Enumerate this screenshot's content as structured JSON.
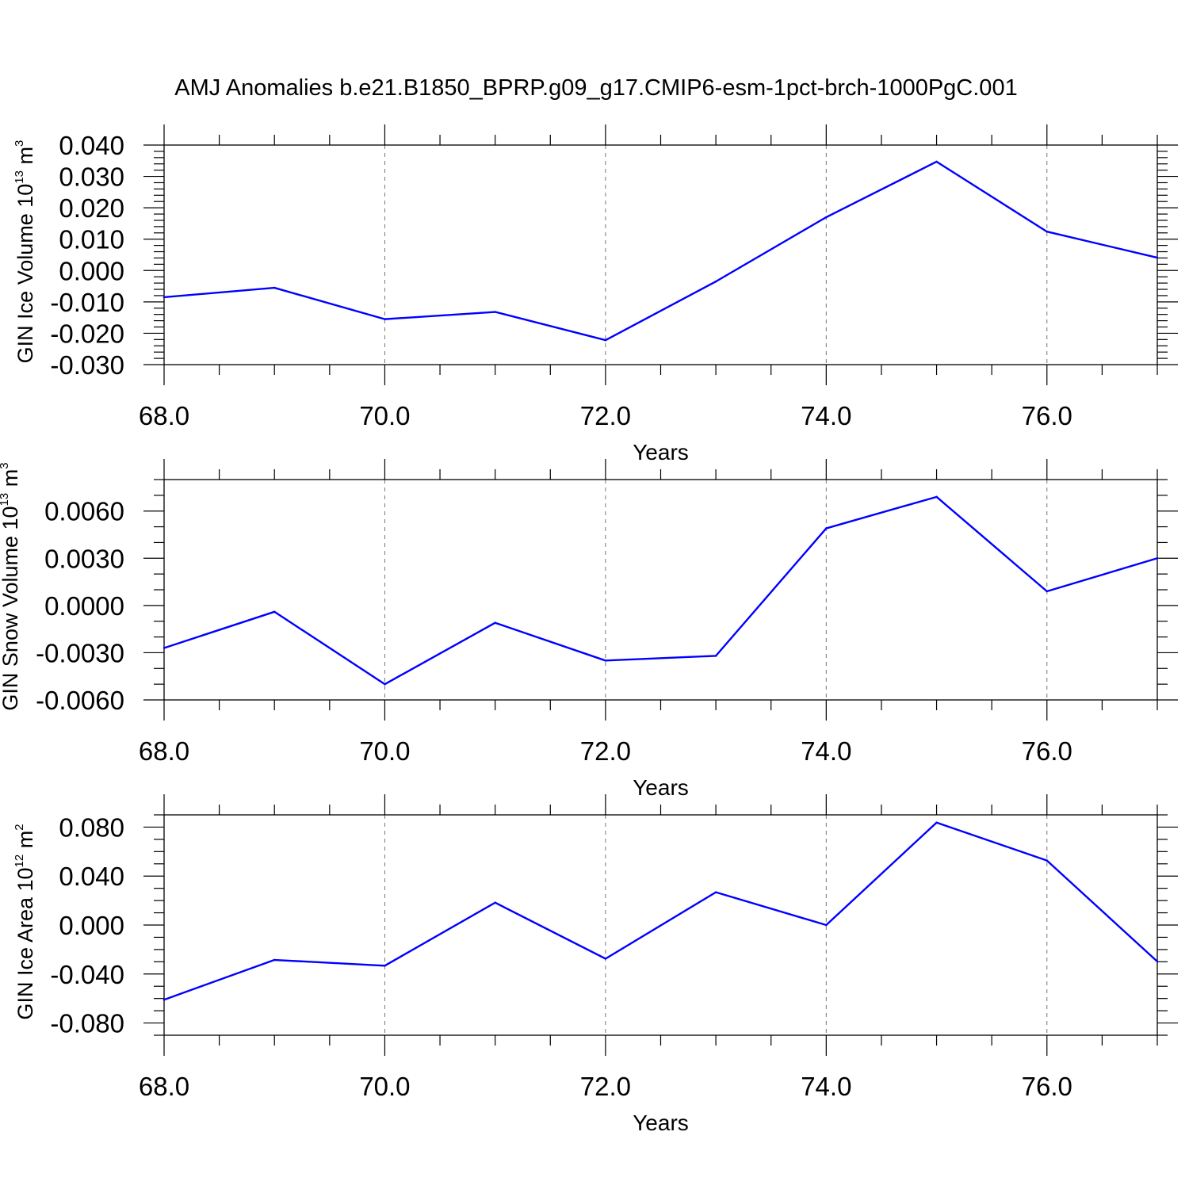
{
  "colors": {
    "series": "#0000ff",
    "axis": "#000000",
    "grid": "#777777"
  },
  "chart_data": [
    {
      "type": "line",
      "title": "AMJ Anomalies b.e21.B1850_BPRP.g09_g17.CMIP6-esm-1pct-brch-1000PgC.001",
      "xlabel": "Years",
      "ylabel_main": "GIN Ice Volume 10",
      "ylabel_exp": "13",
      "ylabel_unit": " m",
      "ylabel_unit_exp": "3",
      "x": [
        68,
        69,
        70,
        71,
        72,
        73,
        74,
        75,
        76,
        77
      ],
      "values": [
        -0.0085,
        -0.0055,
        -0.0155,
        -0.0132,
        -0.0222,
        -0.0035,
        0.017,
        0.0347,
        0.0124,
        0.0041
      ],
      "xlim": [
        68,
        77
      ],
      "ylim": [
        -0.03,
        0.04
      ],
      "xticks": [
        68,
        70,
        72,
        74,
        76
      ],
      "xtick_labels": [
        "68.0",
        "70.0",
        "72.0",
        "74.0",
        "76.0"
      ],
      "yticks": [
        -0.03,
        -0.02,
        -0.01,
        0.0,
        0.01,
        0.02,
        0.03,
        0.04
      ],
      "ytick_labels": [
        "-0.030",
        "-0.020",
        "-0.010",
        "0.000",
        "0.010",
        "0.020",
        "0.030",
        "0.040"
      ],
      "y_minor_step": 0.002,
      "grid": "vertical dashed at major x ticks"
    },
    {
      "type": "line",
      "xlabel": "Years",
      "ylabel_main": "GIN Snow Volume 10",
      "ylabel_exp": "13",
      "ylabel_unit": " m",
      "ylabel_unit_exp": "3",
      "x": [
        68,
        69,
        70,
        71,
        72,
        73,
        74,
        75,
        76,
        77
      ],
      "values": [
        -0.0027,
        -0.0004,
        -0.005,
        -0.0011,
        -0.0035,
        -0.0032,
        0.0049,
        0.0069,
        0.0009,
        0.003
      ],
      "xlim": [
        68,
        77
      ],
      "ylim": [
        -0.006,
        0.008
      ],
      "xticks": [
        68,
        70,
        72,
        74,
        76
      ],
      "xtick_labels": [
        "68.0",
        "70.0",
        "72.0",
        "74.0",
        "76.0"
      ],
      "yticks": [
        -0.006,
        -0.003,
        0.0,
        0.003,
        0.006
      ],
      "ytick_labels": [
        "-0.0060",
        "-0.0030",
        "0.0000",
        "0.0030",
        "0.0060"
      ],
      "y_minor_step": 0.001,
      "grid": "vertical dashed at major x ticks"
    },
    {
      "type": "line",
      "xlabel": "Years",
      "ylabel_main": "GIN Ice Area 10",
      "ylabel_exp": "12",
      "ylabel_unit": " m",
      "ylabel_unit_exp": "2",
      "x": [
        68,
        69,
        70,
        71,
        72,
        73,
        74,
        75,
        76,
        77
      ],
      "values": [
        -0.061,
        -0.0285,
        -0.0332,
        0.0183,
        -0.0275,
        0.0268,
        0.0,
        0.0837,
        0.0527,
        -0.0298
      ],
      "xlim": [
        68,
        77
      ],
      "ylim": [
        -0.09,
        0.09
      ],
      "xticks": [
        68,
        70,
        72,
        74,
        76
      ],
      "xtick_labels": [
        "68.0",
        "70.0",
        "72.0",
        "74.0",
        "76.0"
      ],
      "yticks": [
        -0.08,
        -0.04,
        0.0,
        0.04,
        0.08
      ],
      "ytick_labels": [
        "-0.080",
        "-0.040",
        "0.000",
        "0.040",
        "0.080"
      ],
      "y_minor_step": 0.01,
      "grid": "vertical dashed at major x ticks"
    }
  ]
}
